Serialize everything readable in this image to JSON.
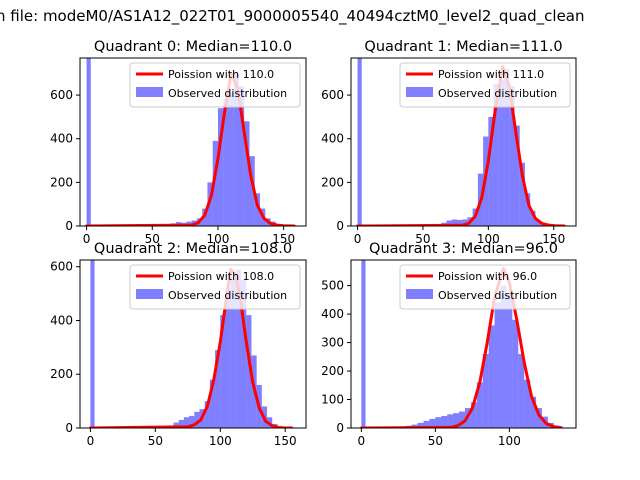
{
  "suptitle": "n file: modeM0/AS1A12_022T01_9000005540_40494cztM0_level2_quad_clean",
  "colors": {
    "poisson": "#ff0000",
    "observed": "#0000ff",
    "axis": "#000000"
  },
  "chart_data": [
    {
      "type": "bar",
      "title": "Quadrant 0: Median=110.0",
      "xlim": [
        -5,
        167
      ],
      "ylim": [
        0,
        770
      ],
      "xticks": [
        0,
        50,
        100,
        150
      ],
      "yticks": [
        0,
        200,
        400,
        600
      ],
      "legend_position": "top-right",
      "series": [
        {
          "name": "Poission with 110.0",
          "kind": "line",
          "mean": 110.0,
          "x": [
            0,
            80,
            85,
            90,
            95,
            100,
            105,
            110,
            115,
            120,
            125,
            130,
            135,
            140,
            145,
            150,
            158
          ],
          "values": [
            0,
            4,
            15,
            50,
            140,
            310,
            520,
            700,
            630,
            430,
            230,
            95,
            35,
            12,
            4,
            1,
            0
          ]
        },
        {
          "name": "Observed distribution",
          "kind": "histogram",
          "bin_edges": [
            0,
            3.2,
            64,
            68,
            72,
            76,
            80,
            84,
            88,
            92,
            96,
            100,
            104,
            108,
            112,
            116,
            120,
            124,
            128,
            132,
            136,
            140,
            144,
            148
          ],
          "counts": [
            770,
            0,
            12,
            18,
            15,
            20,
            25,
            35,
            80,
            200,
            390,
            540,
            580,
            610,
            700,
            640,
            480,
            320,
            150,
            80,
            35,
            20,
            8
          ]
        }
      ]
    },
    {
      "type": "bar",
      "title": "Quadrant 1: Median=111.0",
      "xlim": [
        -5,
        167
      ],
      "ylim": [
        0,
        770
      ],
      "xticks": [
        0,
        50,
        100,
        150
      ],
      "yticks": [
        0,
        200,
        400,
        600
      ],
      "legend_position": "top-right",
      "series": [
        {
          "name": "Poission with 111.0",
          "kind": "line",
          "mean": 111.0,
          "x": [
            0,
            80,
            85,
            90,
            95,
            100,
            105,
            111,
            116,
            121,
            126,
            131,
            136,
            141,
            146,
            151,
            158
          ],
          "values": [
            0,
            3,
            12,
            45,
            130,
            300,
            520,
            730,
            640,
            430,
            230,
            95,
            35,
            12,
            4,
            1,
            0
          ]
        },
        {
          "name": "Observed distribution",
          "kind": "histogram",
          "bin_edges": [
            0,
            3.2,
            64,
            68,
            72,
            76,
            80,
            84,
            88,
            92,
            96,
            100,
            104,
            108,
            112,
            116,
            120,
            124,
            128,
            132,
            136,
            140,
            144,
            148
          ],
          "counts": [
            770,
            0,
            15,
            25,
            30,
            28,
            30,
            40,
            80,
            240,
            410,
            500,
            650,
            670,
            720,
            640,
            460,
            290,
            150,
            70,
            25,
            10,
            5
          ]
        }
      ]
    },
    {
      "type": "bar",
      "title": "Quadrant 2: Median=108.0",
      "xlim": [
        -8,
        166
      ],
      "ylim": [
        0,
        625
      ],
      "xticks": [
        0,
        50,
        100,
        150
      ],
      "yticks": [
        0,
        200,
        400,
        600
      ],
      "legend_position": "top-right",
      "series": [
        {
          "name": "Poission with 108.0",
          "kind": "line",
          "mean": 108.0,
          "x": [
            0,
            75,
            80,
            85,
            90,
            95,
            100,
            104,
            108,
            112,
            116,
            120,
            125,
            130,
            135,
            140,
            145,
            150,
            155
          ],
          "values": [
            0,
            5,
            12,
            30,
            80,
            180,
            320,
            460,
            590,
            570,
            460,
            320,
            170,
            75,
            25,
            8,
            2,
            0,
            0
          ]
        },
        {
          "name": "Observed distribution",
          "kind": "histogram",
          "bin_edges": [
            0,
            3.2,
            64,
            68,
            72,
            76,
            80,
            84,
            88,
            92,
            96,
            100,
            104,
            108,
            112,
            116,
            120,
            124,
            128,
            132,
            136,
            140,
            144,
            148
          ],
          "counts": [
            625,
            0,
            20,
            30,
            40,
            45,
            60,
            70,
            100,
            180,
            290,
            420,
            520,
            560,
            590,
            550,
            420,
            270,
            160,
            80,
            40,
            15,
            5
          ]
        }
      ]
    },
    {
      "type": "bar",
      "title": "Quadrant 3: Median=96.0",
      "xlim": [
        -7,
        145
      ],
      "ylim": [
        0,
        590
      ],
      "xticks": [
        0,
        50,
        100
      ],
      "yticks": [
        0,
        100,
        200,
        300,
        400,
        500
      ],
      "legend_position": "top-right",
      "series": [
        {
          "name": "Poission with 96.0",
          "kind": "line",
          "mean": 96.0,
          "x": [
            0,
            60,
            65,
            70,
            75,
            80,
            85,
            90,
            96,
            100,
            105,
            110,
            115,
            120,
            125,
            130,
            135
          ],
          "values": [
            0,
            2,
            8,
            25,
            70,
            160,
            300,
            460,
            560,
            510,
            380,
            230,
            110,
            45,
            15,
            5,
            1
          ]
        },
        {
          "name": "Observed distribution",
          "kind": "histogram",
          "bin_edges": [
            0,
            2.8,
            30,
            34,
            38,
            42,
            46,
            50,
            54,
            58,
            62,
            66,
            70,
            74,
            78,
            82,
            86,
            90,
            94,
            98,
            102,
            106,
            110,
            114,
            118,
            122,
            126,
            130,
            134
          ],
          "counts": [
            590,
            0,
            8,
            12,
            18,
            25,
            32,
            38,
            42,
            48,
            52,
            58,
            70,
            90,
            160,
            260,
            360,
            440,
            500,
            470,
            380,
            260,
            170,
            110,
            70,
            40,
            18,
            8
          ]
        }
      ]
    }
  ]
}
